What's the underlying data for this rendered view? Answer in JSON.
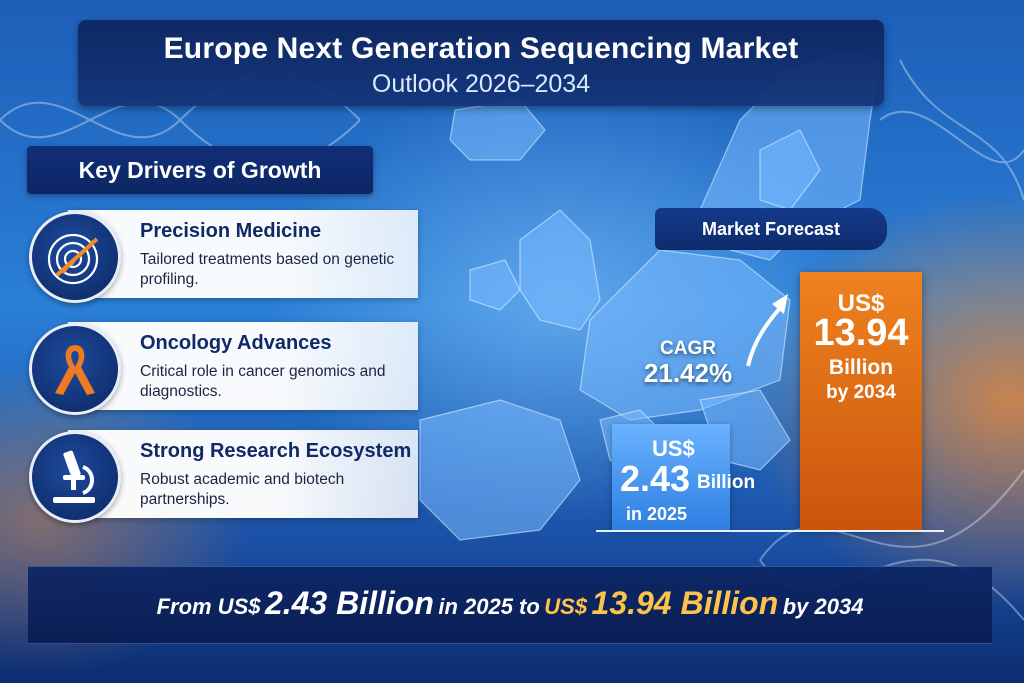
{
  "header": {
    "title": "Europe Next Generation Sequencing Market",
    "subtitle": "Outlook 2026–2034"
  },
  "drivers": {
    "heading": "Key Drivers of Growth",
    "items": [
      {
        "title": "Precision Medicine",
        "desc": "Tailored treatments based on genetic profiling.",
        "icon": "target-dna-icon"
      },
      {
        "title": "Oncology Advances",
        "desc": "Critical role in cancer genomics and diagnostics.",
        "icon": "cancer-ribbon-icon"
      },
      {
        "title": "Strong Research Ecosystem",
        "desc": "Robust academic and biotech partnerships.",
        "icon": "microscope-icon"
      }
    ]
  },
  "forecast": {
    "label": "Market Forecast",
    "cagr_label": "CAGR",
    "cagr_value": "21.42%",
    "start": {
      "currency": "US$",
      "value": "2.43",
      "unit": "Billion",
      "year": "in 2025"
    },
    "end": {
      "currency": "US$",
      "value": "13.94",
      "unit": "Billion",
      "year": "by 2034"
    }
  },
  "banner": {
    "from": "From US$",
    "start_value": "2.43 Billion",
    "in_year": "in 2025 to",
    "to_currency": "US$",
    "end_value": "13.94 Billion",
    "by_year": "by 2034"
  },
  "colors": {
    "navy": "#0d2663",
    "orange": "#e8761a",
    "blue_bar": "#4a9bf0",
    "gold": "#ffc24a"
  }
}
